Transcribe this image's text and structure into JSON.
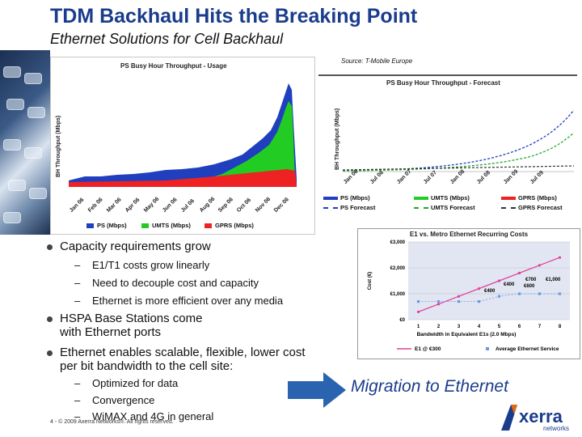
{
  "header": {
    "title": "TDM Backhaul Hits the Breaking Point",
    "subtitle": "Ethernet Solutions for Cell Backhaul"
  },
  "usage_chart": {
    "title": "PS Busy Hour Throughput - Usage",
    "ylabel": "BH Throughput (Mbps)",
    "ticks": [
      "Jan 06",
      "Feb 06",
      "Mar 06",
      "Apr 06",
      "May 06",
      "Jun 06",
      "Jul 06",
      "Aug 06",
      "Sep 06",
      "Oct 06",
      "Nov 06",
      "Dec 06"
    ],
    "legend": [
      "PS (Mbps)",
      "UMTS (Mbps)",
      "GPRS (Mbps)"
    ]
  },
  "forecast_chart": {
    "source": "Source: T-Mobile Europe",
    "title": "PS Busy Hour Throughput - Forecast",
    "ylabel": "BH Throughput (Mbps)",
    "ticks": [
      "Jan 06",
      "Jul 06",
      "Jan 07",
      "Jul 07",
      "Jan 08",
      "Jul 08",
      "Jan 09",
      "Jul 09"
    ],
    "legend": [
      "PS (Mbps)",
      "UMTS (Mbps)",
      "GPRS (Mbps)",
      "PS Forecast",
      "UMTS Forecast",
      "GPRS Forecast"
    ]
  },
  "bullets": {
    "b1": "Capacity requirements grow",
    "b1_subs": [
      "E1/T1 costs grow linearly",
      "Need to decouple cost and capacity",
      "Ethernet is more efficient over any media"
    ],
    "b2_line1": "HSPA Base Stations come",
    "b2_line2": "with Ethernet ports",
    "b3_line1": "Ethernet enables scalable, flexible, lower cost",
    "b3_line2": "per bit bandwidth to the cell site:",
    "b3_subs": [
      "Optimized for data",
      "Convergence",
      "WiMAX and 4G in general"
    ],
    "dash": "–"
  },
  "cost_chart": {
    "title": "E1 vs. Metro Ethernet Recurring Costs",
    "ylabel": "Cost (€)",
    "y_ticks": [
      "€3,000",
      "€2,000",
      "€1,000",
      "€0"
    ],
    "x_ticks": [
      "1",
      "2",
      "3",
      "4",
      "5",
      "6",
      "7",
      "8"
    ],
    "xlabel": "Bandwidth in Equivalent E1s (2.0 Mbps)",
    "annotations": [
      "€400",
      "€600",
      "€700",
      "€1,000",
      "€400"
    ],
    "legend": [
      "E1 @ €300",
      "Average Ethernet Service"
    ]
  },
  "chart_data": {
    "type": "line",
    "title": "E1 vs. Metro Ethernet Recurring Costs",
    "xlabel": "Bandwidth in Equivalent E1s (2.0 Mbps)",
    "ylabel": "Cost (€)",
    "x": [
      1,
      2,
      3,
      4,
      5,
      6,
      7,
      8
    ],
    "ylim": [
      0,
      3000
    ],
    "series": [
      {
        "name": "E1 @ €300",
        "values": [
          300,
          600,
          900,
          1200,
          1500,
          1800,
          2100,
          2400
        ]
      },
      {
        "name": "Average Ethernet Service",
        "values": [
          700,
          700,
          700,
          700,
          900,
          1000,
          1000,
          1000
        ]
      }
    ]
  },
  "migration": "Migration to Ethernet",
  "footer": "4 - © 2009 Axerra Networks®. All rights reserved.",
  "logo": "Axerra networks",
  "colors": {
    "title": "#1a3c8c",
    "ps": "#1f3fbf",
    "umts": "#22cc22",
    "gprs": "#ee2222",
    "arrow": "#2a63b0"
  }
}
